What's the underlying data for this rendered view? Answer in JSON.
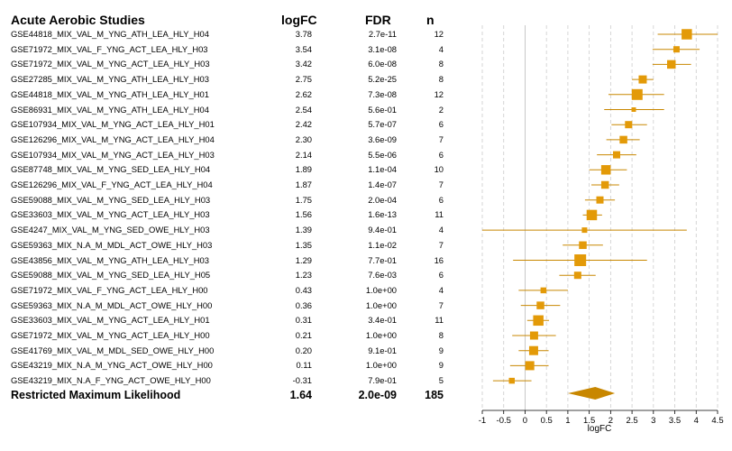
{
  "headers": {
    "study": "Acute Aerobic Studies",
    "logfc": "logFC",
    "fdr": "FDR",
    "n": "n"
  },
  "summary": {
    "label": "Restricted Maximum Likelihood",
    "logfc": "1.64",
    "fdr": "2.0e-09",
    "n": "185"
  },
  "chart_data": {
    "type": "forest",
    "xlabel": "logFC",
    "xlim": [
      -1,
      4.5
    ],
    "xticks": [
      "-1",
      "-0.5",
      "0",
      "0.5",
      "1",
      "1.5",
      "2",
      "2.5",
      "3",
      "3.5",
      "4",
      "4.5"
    ],
    "grid": "vertical dashed",
    "colors": {
      "marker": "#e39a08",
      "ci_line": "#c88700",
      "diamond": "#c88700",
      "grid": "#cccccc",
      "zero_line": "#bbbbbb"
    },
    "summary": {
      "estimate": 1.64,
      "ci_low": 1.0,
      "ci_high": 2.1
    },
    "studies": [
      {
        "label": "GSE44818_MIX_VAL_M_YNG_ATH_LEA_HLY_H04",
        "logfc": "3.78",
        "fdr": "2.7e-11",
        "n": "12",
        "est": 3.78,
        "lo": 3.1,
        "hi": 4.5,
        "weight": 0.85
      },
      {
        "label": "GSE71972_MIX_VAL_F_YNG_ACT_LEA_HLY_H03",
        "logfc": "3.54",
        "fdr": "3.1e-08",
        "n": "4",
        "est": 3.54,
        "lo": 2.98,
        "hi": 4.08,
        "weight": 0.4
      },
      {
        "label": "GSE71972_MIX_VAL_M_YNG_ACT_LEA_HLY_H03",
        "logfc": "3.42",
        "fdr": "6.0e-08",
        "n": "8",
        "est": 3.42,
        "lo": 2.98,
        "hi": 3.88,
        "weight": 0.65
      },
      {
        "label": "GSE27285_MIX_VAL_M_YNG_ATH_LEA_HLY_H03",
        "logfc": "2.75",
        "fdr": "5.2e-25",
        "n": "8",
        "est": 2.75,
        "lo": 2.5,
        "hi": 3.0,
        "weight": 0.6
      },
      {
        "label": "GSE44818_MIX_VAL_M_YNG_ATH_LEA_HLY_H01",
        "logfc": "2.62",
        "fdr": "7.3e-08",
        "n": "12",
        "est": 2.62,
        "lo": 1.95,
        "hi": 3.25,
        "weight": 0.9
      },
      {
        "label": "GSE86931_MIX_VAL_M_YNG_ATH_LEA_HLY_H04",
        "logfc": "2.54",
        "fdr": "5.6e-01",
        "n": "2",
        "est": 2.54,
        "lo": 1.85,
        "hi": 3.25,
        "weight": 0.2
      },
      {
        "label": "GSE107934_MIX_VAL_M_YNG_ACT_LEA_HLY_H01",
        "logfc": "2.42",
        "fdr": "5.7e-07",
        "n": "6",
        "est": 2.42,
        "lo": 2.02,
        "hi": 2.85,
        "weight": 0.5
      },
      {
        "label": "GSE126296_MIX_VAL_M_YNG_ACT_LEA_HLY_H04",
        "logfc": "2.30",
        "fdr": "3.6e-09",
        "n": "7",
        "est": 2.3,
        "lo": 1.9,
        "hi": 2.68,
        "weight": 0.55
      },
      {
        "label": "GSE107934_MIX_VAL_M_YNG_ACT_LEA_HLY_H03",
        "logfc": "2.14",
        "fdr": "5.5e-06",
        "n": "6",
        "est": 2.14,
        "lo": 1.68,
        "hi": 2.6,
        "weight": 0.5
      },
      {
        "label": "GSE87748_MIX_VAL_M_YNG_SED_LEA_HLY_H04",
        "logfc": "1.89",
        "fdr": "1.1e-04",
        "n": "10",
        "est": 1.89,
        "lo": 1.5,
        "hi": 2.38,
        "weight": 0.75
      },
      {
        "label": "GSE126296_MIX_VAL_F_YNG_ACT_LEA_HLY_H04",
        "logfc": "1.87",
        "fdr": "1.4e-07",
        "n": "7",
        "est": 1.87,
        "lo": 1.55,
        "hi": 2.2,
        "weight": 0.55
      },
      {
        "label": "GSE59088_MIX_VAL_M_YNG_SED_LEA_HLY_H03",
        "logfc": "1.75",
        "fdr": "2.0e-04",
        "n": "6",
        "est": 1.75,
        "lo": 1.4,
        "hi": 2.1,
        "weight": 0.5
      },
      {
        "label": "GSE33603_MIX_VAL_M_YNG_ACT_LEA_HLY_H03",
        "logfc": "1.56",
        "fdr": "1.6e-13",
        "n": "11",
        "est": 1.56,
        "lo": 1.35,
        "hi": 1.8,
        "weight": 0.85
      },
      {
        "label": "GSE4247_MIX_VAL_M_YNG_SED_OWE_HLY_H03",
        "logfc": "1.39",
        "fdr": "9.4e-01",
        "n": "4",
        "est": 1.39,
        "lo": -1.0,
        "hi": 3.78,
        "weight": 0.3
      },
      {
        "label": "GSE59363_MIX_N.A_M_MDL_ACT_OWE_HLY_H03",
        "logfc": "1.35",
        "fdr": "1.1e-02",
        "n": "7",
        "est": 1.35,
        "lo": 0.88,
        "hi": 1.82,
        "weight": 0.55
      },
      {
        "label": "GSE43856_MIX_VAL_M_YNG_ATH_LEA_HLY_H03",
        "logfc": "1.29",
        "fdr": "7.7e-01",
        "n": "16",
        "est": 1.29,
        "lo": -0.28,
        "hi": 2.85,
        "weight": 1.0
      },
      {
        "label": "GSE59088_MIX_VAL_M_YNG_SED_LEA_HLY_H05",
        "logfc": "1.23",
        "fdr": "7.6e-03",
        "n": "6",
        "est": 1.23,
        "lo": 0.8,
        "hi": 1.65,
        "weight": 0.5
      },
      {
        "label": "GSE71972_MIX_VAL_F_YNG_ACT_LEA_HLY_H00",
        "logfc": "0.43",
        "fdr": "1.0e+00",
        "n": "4",
        "est": 0.43,
        "lo": -0.15,
        "hi": 1.0,
        "weight": 0.35
      },
      {
        "label": "GSE59363_MIX_N.A_M_MDL_ACT_OWE_HLY_H00",
        "logfc": "0.36",
        "fdr": "1.0e+00",
        "n": "7",
        "est": 0.36,
        "lo": -0.1,
        "hi": 0.82,
        "weight": 0.55
      },
      {
        "label": "GSE33603_MIX_VAL_M_YNG_ACT_LEA_HLY_H01",
        "logfc": "0.31",
        "fdr": "3.4e-01",
        "n": "11",
        "est": 0.31,
        "lo": 0.05,
        "hi": 0.56,
        "weight": 0.85
      },
      {
        "label": "GSE71972_MIX_VAL_M_YNG_ACT_LEA_HLY_H00",
        "logfc": "0.21",
        "fdr": "1.0e+00",
        "n": "8",
        "est": 0.21,
        "lo": -0.3,
        "hi": 0.72,
        "weight": 0.6
      },
      {
        "label": "GSE41769_MIX_VAL_M_MDL_SED_OWE_HLY_H00",
        "logfc": "0.20",
        "fdr": "9.1e-01",
        "n": "9",
        "est": 0.2,
        "lo": -0.15,
        "hi": 0.55,
        "weight": 0.7
      },
      {
        "label": "GSE43219_MIX_N.A_M_YNG_ACT_OWE_HLY_H00",
        "logfc": "0.11",
        "fdr": "1.0e+00",
        "n": "9",
        "est": 0.11,
        "lo": -0.35,
        "hi": 0.55,
        "weight": 0.7
      },
      {
        "label": "GSE43219_MIX_N.A_F_YNG_ACT_OWE_HLY_H00",
        "logfc": "-0.31",
        "fdr": "7.9e-01",
        "n": "5",
        "est": -0.31,
        "lo": -0.75,
        "hi": 0.15,
        "weight": 0.35
      }
    ]
  }
}
